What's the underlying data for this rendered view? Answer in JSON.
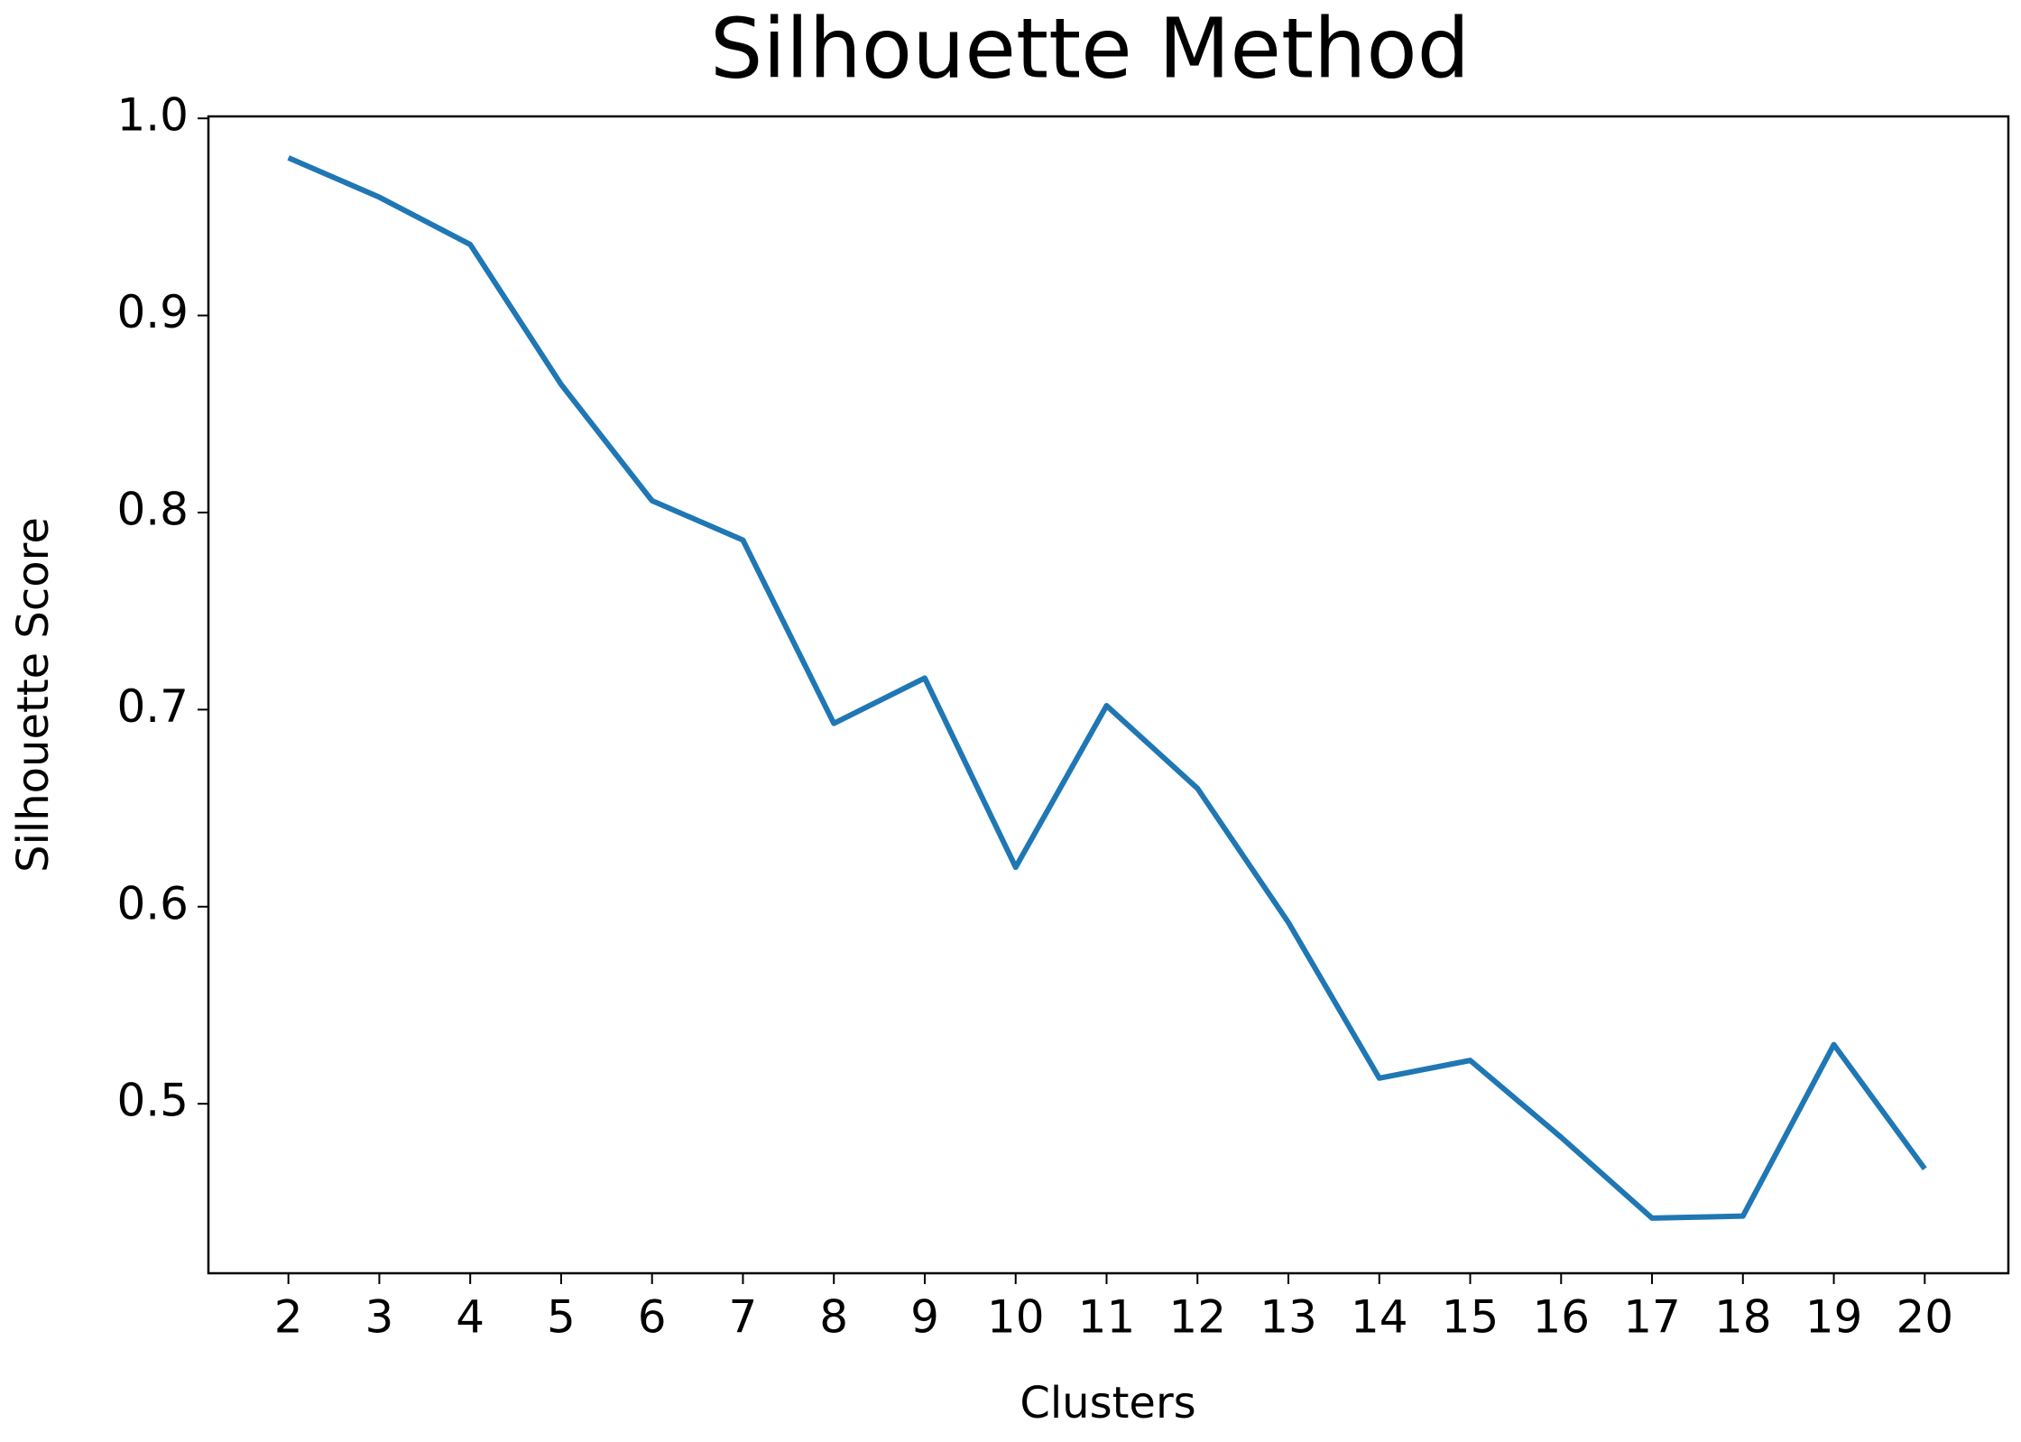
{
  "chart_data": {
    "type": "line",
    "title": "Silhouette Method",
    "x_label": "Clusters",
    "y_label": "Silhouette Score",
    "x": [
      2,
      3,
      4,
      5,
      6,
      7,
      8,
      9,
      10,
      11,
      12,
      13,
      14,
      15,
      16,
      17,
      18,
      19,
      20
    ],
    "series": [
      {
        "name": "Silhouette Score",
        "color": "#1f77b4",
        "values": [
          0.98,
          0.96,
          0.936,
          0.865,
          0.806,
          0.786,
          0.693,
          0.716,
          0.62,
          0.702,
          0.66,
          0.592,
          0.513,
          0.522,
          0.483,
          0.442,
          0.443,
          0.53,
          0.467
        ]
      }
    ],
    "xlim": [
      1.12,
      20.92
    ],
    "xticks": [
      2,
      3,
      4,
      5,
      6,
      7,
      8,
      9,
      10,
      11,
      12,
      13,
      14,
      15,
      16,
      17,
      18,
      19,
      20
    ],
    "ylim": [
      0.414,
      1.001
    ],
    "yticks": [
      {
        "value": 0.5,
        "label": "0.5"
      },
      {
        "value": 0.6,
        "label": "0.6"
      },
      {
        "value": 0.7,
        "label": "0.7"
      },
      {
        "value": 0.8,
        "label": "0.8"
      },
      {
        "value": 0.9,
        "label": "0.9"
      },
      {
        "value": 1.0,
        "label": "1.0"
      }
    ],
    "grid": false
  }
}
